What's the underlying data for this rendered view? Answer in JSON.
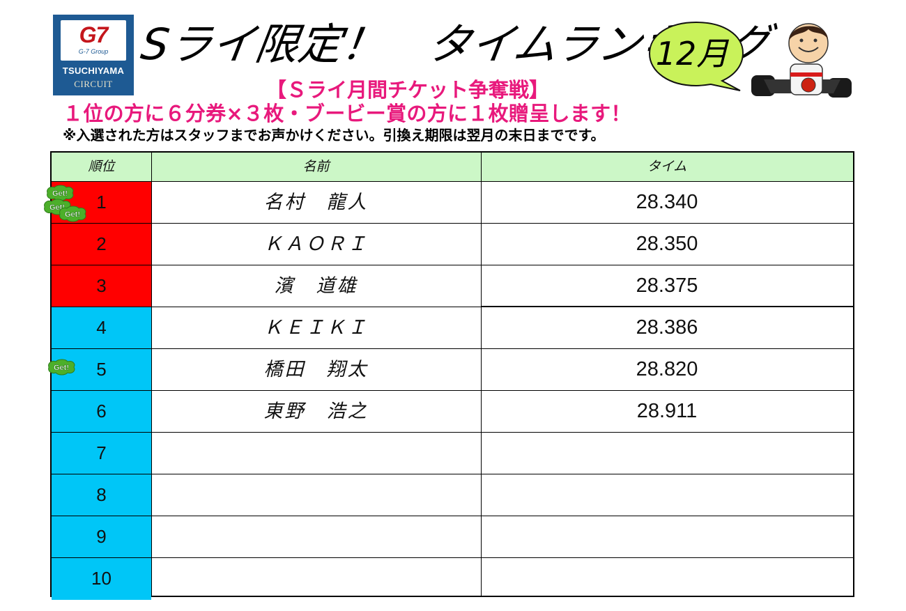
{
  "logo": {
    "brand": "G7",
    "group": "G-7 Group",
    "line1": "TSUCHIYAMA",
    "line2": "CIRCUIT"
  },
  "header": {
    "title": "Sライ限定！　タイムランキング",
    "month": "12月",
    "subtitle": "【Ｓライ月間チケット争奪戦】",
    "prize": "１位の方に６分券×３枚・ブービー賞の方に１枚贈呈します！",
    "note": "※入選された方はスタッフまでお声かけください。引換え期限は翌月の末日までです。"
  },
  "table": {
    "headers": [
      "順位",
      "名前",
      "タイム"
    ],
    "rows": [
      {
        "rank": "1",
        "name": "名村　龍人",
        "time": "28.340",
        "tier": "top",
        "get_badges": 3
      },
      {
        "rank": "2",
        "name": "ＫＡＯＲＩ",
        "time": "28.350",
        "tier": "top",
        "get_badges": 0
      },
      {
        "rank": "3",
        "name": "濱　道雄",
        "time": "28.375",
        "tier": "top",
        "get_badges": 0
      },
      {
        "rank": "4",
        "name": "ＫＥＩＫＩ",
        "time": "28.386",
        "tier": "other",
        "get_badges": 0
      },
      {
        "rank": "5",
        "name": "橋田　翔太",
        "time": "28.820",
        "tier": "other",
        "get_badges": 1
      },
      {
        "rank": "6",
        "name": "東野　浩之",
        "time": "28.911",
        "tier": "other",
        "get_badges": 0
      },
      {
        "rank": "7",
        "name": "",
        "time": "",
        "tier": "other",
        "get_badges": 0
      },
      {
        "rank": "8",
        "name": "",
        "time": "",
        "tier": "other",
        "get_badges": 0
      },
      {
        "rank": "9",
        "name": "",
        "time": "",
        "tier": "other",
        "get_badges": 0
      },
      {
        "rank": "10",
        "name": "",
        "time": "",
        "tier": "other",
        "get_badges": 0
      }
    ]
  },
  "badge_text": "Get!",
  "colors": {
    "top": "#ff0000",
    "other": "#00c6f7",
    "header": "#ccf7c7",
    "accent": "#e8197c",
    "badge": "#4caf2a"
  }
}
